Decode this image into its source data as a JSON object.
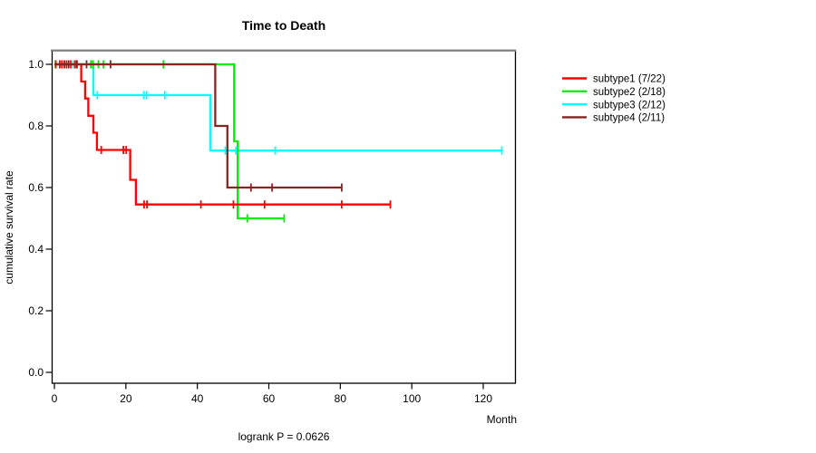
{
  "title": "Time to Death",
  "footer": "logrank P = 0.0626",
  "axes": {
    "x_label": "Month",
    "y_label": "cumulative survival rate"
  },
  "colors": {
    "subtype1": "#FF0000",
    "subtype2": "#00EE00",
    "subtype3": "#00FFFF",
    "subtype4": "#8B2323",
    "box_top": "#808080",
    "axis": "#000000"
  },
  "legend": {
    "items": [
      {
        "label": "subtype1 (7/22)",
        "color": "#FF0000"
      },
      {
        "label": "subtype2 (2/18)",
        "color": "#00EE00"
      },
      {
        "label": "subtype3 (2/12)",
        "color": "#00FFFF"
      },
      {
        "label": "subtype4 (2/11)",
        "color": "#8B2323"
      }
    ]
  },
  "chart_data": {
    "type": "line",
    "subtype": "kaplan-meier-step",
    "title": "Time to Death",
    "xlabel": "Month",
    "ylabel": "cumulative survival rate",
    "annotation": "logrank P = 0.0626",
    "xlim": [
      0,
      130
    ],
    "ylim": [
      0,
      1.04
    ],
    "x_ticks": [
      0,
      20,
      40,
      60,
      80,
      100,
      120
    ],
    "y_ticks": [
      1.0,
      0.8,
      0.6,
      0.4,
      0.2,
      0.0
    ],
    "y_tick_labels": [
      "1.0",
      "0.8",
      "0.6",
      "0.4",
      "0.2",
      "0.0"
    ],
    "grid": false,
    "legend_position": "right-outside",
    "series": [
      {
        "name": "subtype1 (7/22)",
        "color": "#FF0000",
        "events": "7/22",
        "steps": [
          [
            0,
            1.0
          ],
          [
            7.5,
            1.0
          ],
          [
            7.5,
            0.944
          ],
          [
            8.6,
            0.944
          ],
          [
            8.6,
            0.889
          ],
          [
            9.5,
            0.889
          ],
          [
            9.5,
            0.833
          ],
          [
            10.9,
            0.833
          ],
          [
            10.9,
            0.778
          ],
          [
            11.9,
            0.778
          ],
          [
            11.9,
            0.722
          ],
          [
            21.2,
            0.722
          ],
          [
            21.2,
            0.625
          ],
          [
            22.8,
            0.625
          ],
          [
            22.8,
            0.545
          ],
          [
            94,
            0.545
          ]
        ],
        "censors": [
          [
            0.4,
            1.0
          ],
          [
            1.5,
            1.0
          ],
          [
            2.1,
            1.0
          ],
          [
            3.4,
            1.0
          ],
          [
            4.6,
            1.0
          ],
          [
            5.8,
            1.0
          ],
          [
            6.3,
            1.0
          ],
          [
            13.1,
            0.722
          ],
          [
            19.3,
            0.722
          ],
          [
            20.1,
            0.722
          ],
          [
            25.1,
            0.545
          ],
          [
            25.9,
            0.545
          ],
          [
            41,
            0.545
          ],
          [
            50.1,
            0.545
          ],
          [
            58.8,
            0.545
          ],
          [
            80.4,
            0.545
          ],
          [
            94,
            0.545
          ]
        ]
      },
      {
        "name": "subtype2 (2/18)",
        "color": "#00EE00",
        "events": "2/18",
        "steps": [
          [
            0,
            1.0
          ],
          [
            50.3,
            1.0
          ],
          [
            50.3,
            0.75
          ],
          [
            51.3,
            0.75
          ],
          [
            51.3,
            0.5
          ],
          [
            64.3,
            0.5
          ]
        ],
        "censors": [
          [
            0.3,
            1.0
          ],
          [
            10.2,
            1.0
          ],
          [
            10.8,
            1.0
          ],
          [
            12.3,
            1.0
          ],
          [
            13.7,
            1.0
          ],
          [
            30.5,
            1.0
          ],
          [
            54,
            0.5
          ],
          [
            64.3,
            0.5
          ]
        ]
      },
      {
        "name": "subtype3 (2/12)",
        "color": "#00FFFF",
        "events": "2/12",
        "steps": [
          [
            0,
            1.0
          ],
          [
            10.9,
            1.0
          ],
          [
            10.9,
            0.9
          ],
          [
            43.6,
            0.9
          ],
          [
            43.6,
            0.72
          ],
          [
            125.2,
            0.72
          ]
        ],
        "censors": [
          [
            5.3,
            1.0
          ],
          [
            12,
            0.9
          ],
          [
            25,
            0.9
          ],
          [
            25.8,
            0.9
          ],
          [
            30.9,
            0.9
          ],
          [
            47.8,
            0.72
          ],
          [
            50.8,
            0.72
          ],
          [
            61.8,
            0.72
          ],
          [
            125.2,
            0.72
          ]
        ]
      },
      {
        "name": "subtype4 (2/11)",
        "color": "#8B2323",
        "events": "2/11",
        "steps": [
          [
            0,
            1.0
          ],
          [
            45,
            1.0
          ],
          [
            45,
            0.8
          ],
          [
            48.4,
            0.8
          ],
          [
            48.4,
            0.6
          ],
          [
            80.4,
            0.6
          ]
        ],
        "censors": [
          [
            2.8,
            1.0
          ],
          [
            4.0,
            1.0
          ],
          [
            6.3,
            1.0
          ],
          [
            9.0,
            1.0
          ],
          [
            15.7,
            1.0
          ],
          [
            55,
            0.6
          ],
          [
            60.9,
            0.6
          ],
          [
            80.4,
            0.6
          ]
        ]
      }
    ]
  }
}
